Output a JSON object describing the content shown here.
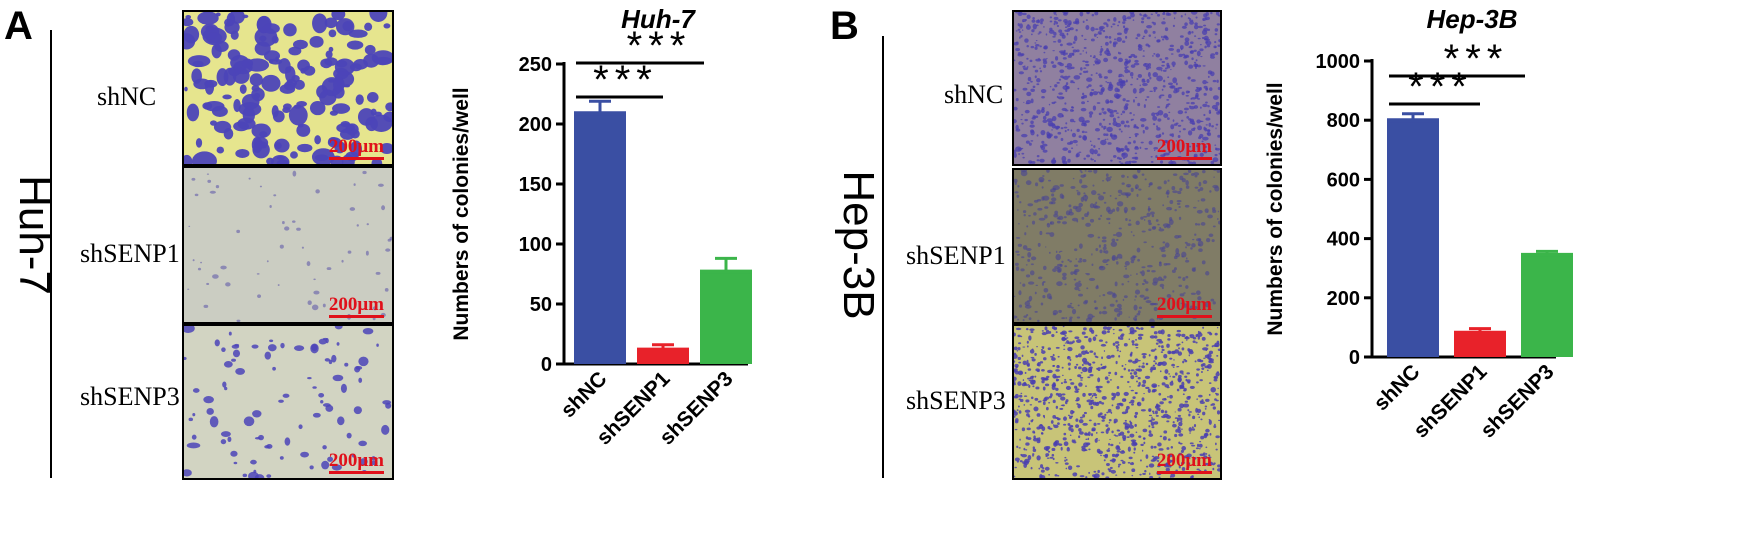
{
  "colors": {
    "shNC": "#3a4fa3",
    "shSENP1": "#e8222a",
    "shSENP3": "#3bb54a",
    "scalebar": "#e0101a"
  },
  "panels": [
    {
      "letter": "A",
      "cell_line": "Huh-7",
      "images": [
        {
          "label": "shNC",
          "scale": "200μm"
        },
        {
          "label": "shSENP1",
          "scale": "200μm"
        },
        {
          "label": "shSENP3",
          "scale": "200μm"
        }
      ]
    },
    {
      "letter": "B",
      "cell_line": "Hep-3B",
      "images": [
        {
          "label": "shNC",
          "scale": "200μm"
        },
        {
          "label": "shSENP1",
          "scale": "200μm"
        },
        {
          "label": "shSENP3",
          "scale": "200μm"
        }
      ]
    }
  ],
  "chart_data": [
    {
      "type": "bar",
      "title": "Huh-7",
      "xlabel": "",
      "ylabel": "Numbers of colonies/well",
      "categories": [
        "shNC",
        "shSENP1",
        "shSENP3"
      ],
      "values": [
        209,
        12,
        77
      ],
      "errors": [
        10,
        4,
        11
      ],
      "ylim": [
        0,
        250
      ],
      "yticks": [
        0,
        50,
        100,
        150,
        200,
        250
      ],
      "significance": [
        {
          "from": "shNC",
          "to": "shSENP1",
          "label": "***"
        },
        {
          "from": "shNC",
          "to": "shSENP3",
          "label": "***"
        }
      ]
    },
    {
      "type": "bar",
      "title": "Hep-3B",
      "xlabel": "",
      "ylabel": "Numbers of colonies/well",
      "categories": [
        "shNC",
        "shSENP1",
        "shSENP3"
      ],
      "values": [
        800,
        82,
        345
      ],
      "errors": [
        22,
        14,
        12
      ],
      "ylim": [
        0,
        1000
      ],
      "yticks": [
        0,
        200,
        400,
        600,
        800,
        1000
      ],
      "significance": [
        {
          "from": "shNC",
          "to": "shSENP1",
          "label": "***"
        },
        {
          "from": "shNC",
          "to": "shSENP3",
          "label": "***"
        }
      ]
    }
  ]
}
